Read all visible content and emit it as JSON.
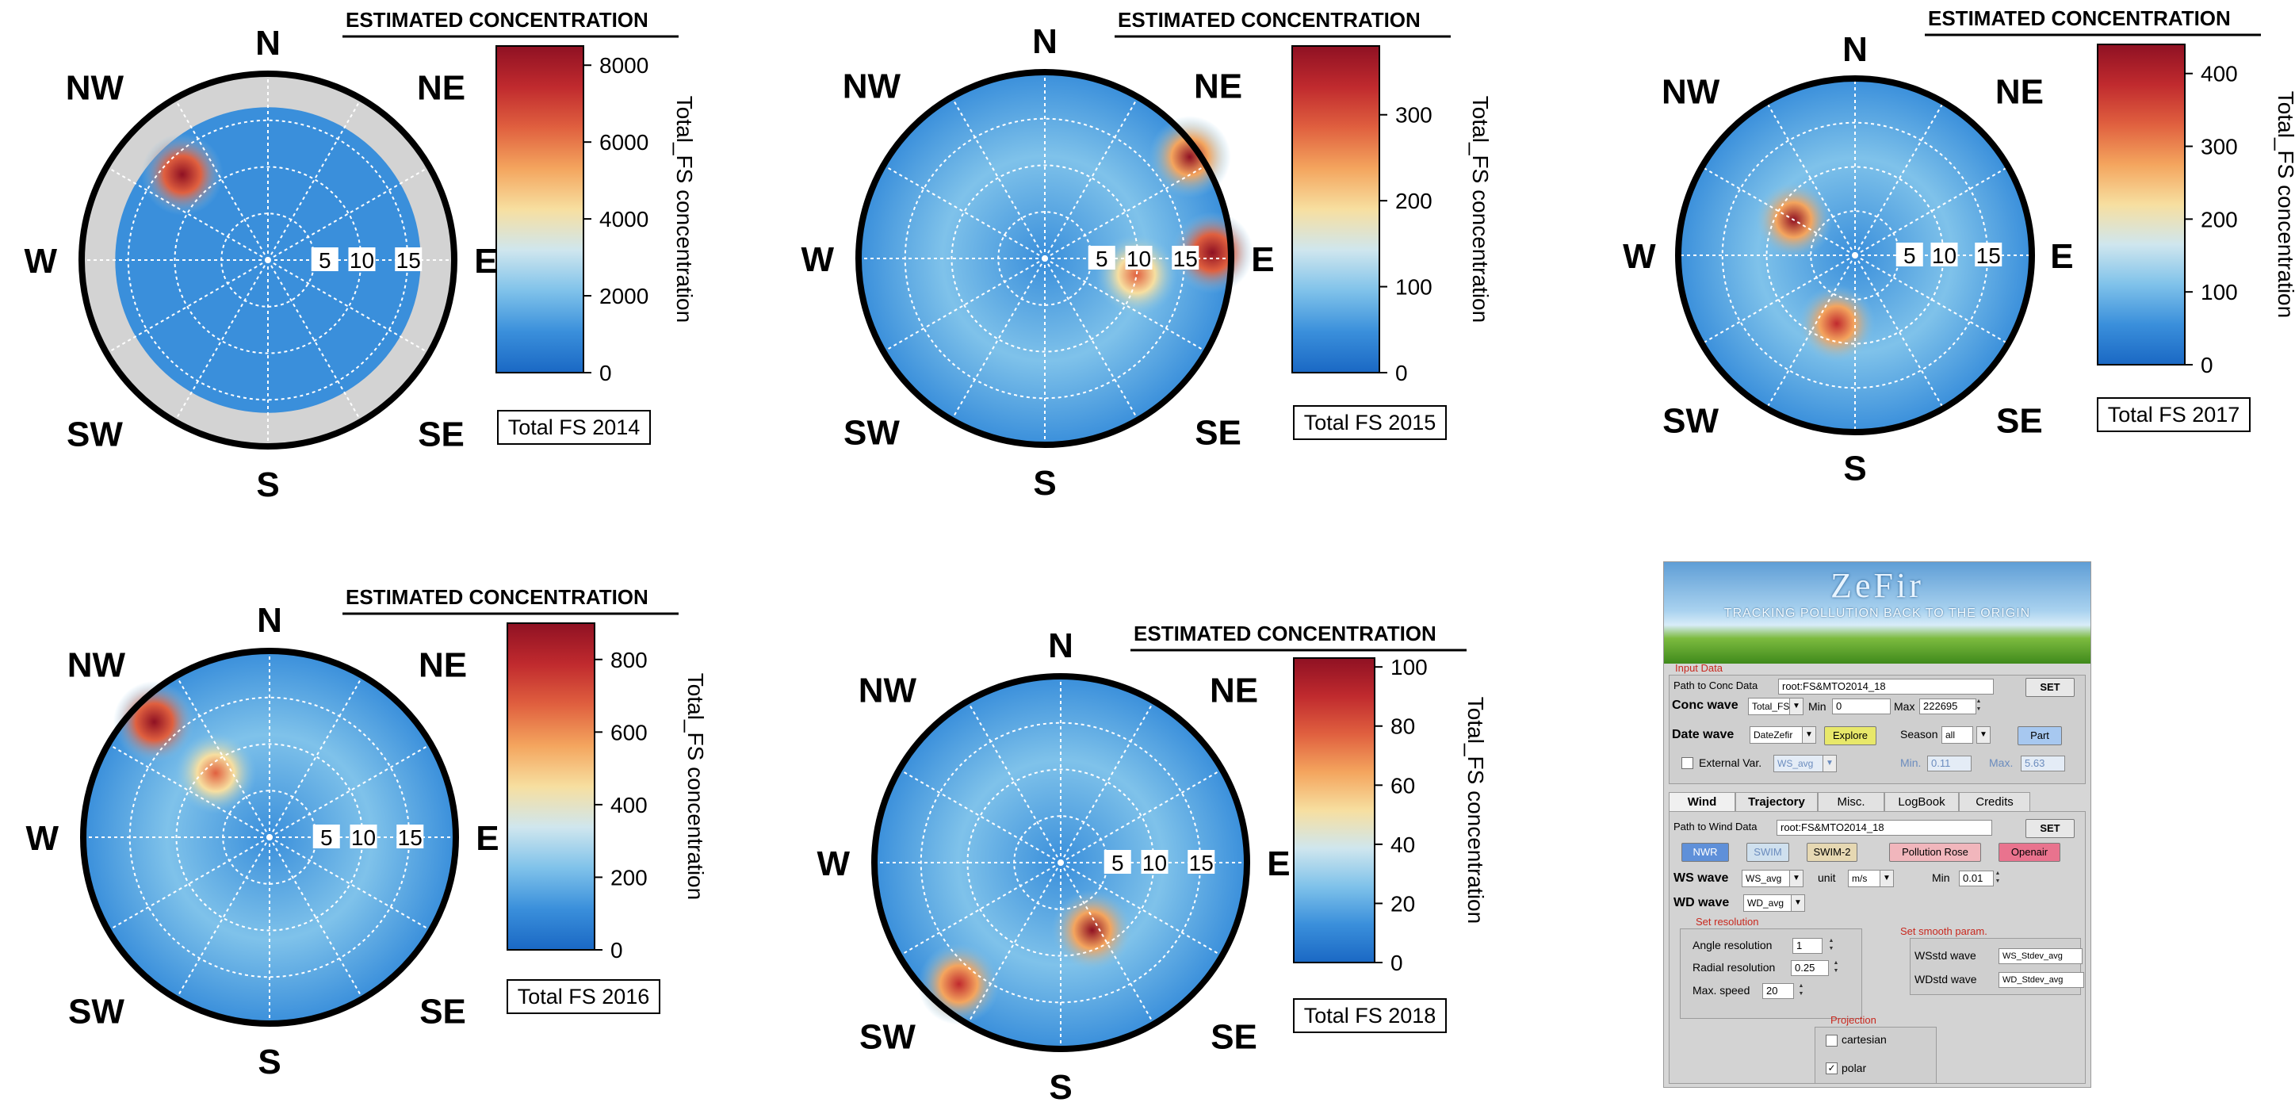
{
  "chart_data": [
    {
      "type": "polar",
      "caption": "Total FS 2014",
      "header": "ESTIMATED CONCENTRATION",
      "colorbar_label": "Total_FS concentration",
      "colorbar_ticks": [
        0,
        2000,
        4000,
        6000,
        8000
      ],
      "colorbar_range": [
        0,
        8500
      ],
      "radial_ticks": [
        "5",
        "10",
        "15"
      ],
      "radial_max": 20,
      "directions": [
        "N",
        "NE",
        "E",
        "SE",
        "S",
        "SW",
        "W",
        "NW"
      ],
      "hotspots": [
        {
          "angle_deg": 315,
          "speed": 13,
          "value": 8500
        }
      ],
      "outer_fill": "#d3d3d3"
    },
    {
      "type": "polar",
      "caption": "Total FS 2015",
      "header": "ESTIMATED CONCENTRATION",
      "colorbar_label": "Total_FS concentration",
      "colorbar_ticks": [
        0,
        100,
        200,
        300
      ],
      "colorbar_range": [
        0,
        380
      ],
      "radial_ticks": [
        "5",
        "10",
        "15"
      ],
      "radial_max": 20,
      "directions": [
        "N",
        "NE",
        "E",
        "SE",
        "S",
        "SW",
        "W",
        "NW"
      ],
      "hotspots": [
        {
          "angle_deg": 55,
          "speed": 19,
          "value": 360
        },
        {
          "angle_deg": 88,
          "speed": 18,
          "value": 380
        },
        {
          "angle_deg": 100,
          "speed": 10,
          "value": 280
        }
      ],
      "outer_fill": "none"
    },
    {
      "type": "polar",
      "caption": "Total FS 2017",
      "header": "ESTIMATED CONCENTRATION",
      "colorbar_label": "Total_FS concentration",
      "colorbar_ticks": [
        0,
        100,
        200,
        300,
        400
      ],
      "colorbar_range": [
        0,
        440
      ],
      "radial_ticks": [
        "5",
        "10",
        "15"
      ],
      "radial_max": 20,
      "directions": [
        "N",
        "NE",
        "E",
        "SE",
        "S",
        "SW",
        "W",
        "NW"
      ],
      "hotspots": [
        {
          "angle_deg": 300,
          "speed": 8,
          "value": 420
        },
        {
          "angle_deg": 195,
          "speed": 8,
          "value": 380
        }
      ],
      "outer_fill": "none"
    },
    {
      "type": "polar",
      "caption": "Total FS 2016",
      "header": "ESTIMATED CONCENTRATION",
      "colorbar_label": "Total_FS concentration",
      "colorbar_ticks": [
        0,
        200,
        400,
        600,
        800
      ],
      "colorbar_range": [
        0,
        900
      ],
      "radial_ticks": [
        "5",
        "10",
        "15"
      ],
      "radial_max": 20,
      "directions": [
        "N",
        "NE",
        "E",
        "SE",
        "S",
        "SW",
        "W",
        "NW"
      ],
      "hotspots": [
        {
          "angle_deg": 315,
          "speed": 17.5,
          "value": 900
        },
        {
          "angle_deg": 320,
          "speed": 9,
          "value": 700
        }
      ],
      "outer_fill": "none"
    },
    {
      "type": "polar",
      "caption": "Total FS 2018",
      "header": "ESTIMATED CONCENTRATION",
      "colorbar_label": "Total_FS concentration",
      "colorbar_ticks": [
        0,
        20,
        40,
        60,
        80,
        100
      ],
      "colorbar_range": [
        0,
        103
      ],
      "radial_ticks": [
        "5",
        "10",
        "15"
      ],
      "radial_max": 20,
      "directions": [
        "N",
        "NE",
        "E",
        "SE",
        "S",
        "SW",
        "W",
        "NW"
      ],
      "hotspots": [
        {
          "angle_deg": 155,
          "speed": 8,
          "value": 100
        },
        {
          "angle_deg": 220,
          "speed": 17,
          "value": 90
        }
      ],
      "outer_fill": "none"
    }
  ],
  "zefir": {
    "title": "ZeFir",
    "subtitle": "TRACKING POLLUTION BACK TO THE ORIGIN",
    "input_group": "Input Data",
    "path_conc_label": "Path to Conc Data",
    "path_conc_value": "root:FS&MTO2014_18",
    "set_label": "SET",
    "conc_wave_label": "Conc wave",
    "conc_wave_value": "Total_FS",
    "min_label": "Min",
    "min_value": "0",
    "max_label": "Max",
    "max_value": "222695",
    "date_wave_label": "Date wave",
    "date_wave_value": "DateZefir",
    "explore_label": "Explore",
    "season_label": "Season",
    "season_value": "all",
    "part_label": "Part",
    "external_label": "External Var.",
    "external_value": "WS_avg",
    "ext_min_label": "Min.",
    "ext_min_value": "0.11",
    "ext_max_label": "Max.",
    "ext_max_value": "5.63",
    "tabs": [
      "Wind",
      "Trajectory",
      "Misc.",
      "LogBook",
      "Credits"
    ],
    "path_wind_label": "Path to Wind Data",
    "path_wind_value": "root:FS&MTO2014_18",
    "buttons": [
      "NWR",
      "SWIM",
      "SWIM-2",
      "Pollution Rose",
      "Openair"
    ],
    "ws_wave_label": "WS wave",
    "ws_wave_value": "WS_avg",
    "unit_label": "unit",
    "unit_value": "m/s",
    "ws_min_label": "Min",
    "ws_min_value": "0.01",
    "wd_wave_label": "WD wave",
    "wd_wave_value": "WD_avg",
    "set_res_label": "Set resolution",
    "angle_res_label": "Angle resolution",
    "angle_res_value": "1",
    "radial_res_label": "Radial resolution",
    "radial_res_value": "0.25",
    "max_speed_label": "Max. speed",
    "max_speed_value": "20",
    "smooth_label": "Set smooth param.",
    "wsstd_label": "WSstd wave",
    "wsstd_value": "WS_Stdev_avg",
    "wdstd_label": "WDstd wave",
    "wdstd_value": "WD_Stdev_avg",
    "projection_label": "Projection",
    "cartesian_label": "cartesian",
    "polar_label": "polar",
    "polar_checked": "✓"
  },
  "colors": {
    "scale": [
      "#1a68c4",
      "#3a8fdb",
      "#7fc2ea",
      "#cfe6ee",
      "#f7dfa0",
      "#f4a55e",
      "#e0603f",
      "#c02a2e",
      "#8f1123"
    ],
    "btn_nwr": "#5f90d9",
    "btn_swim": "#cfe0ee",
    "btn_swim2": "#e6d8b2",
    "btn_rose": "#f1b6bc",
    "btn_openair": "#e9738e",
    "btn_set": "#e8e8e8",
    "btn_explore": "#e8e86a",
    "btn_part": "#a7c8f0"
  }
}
